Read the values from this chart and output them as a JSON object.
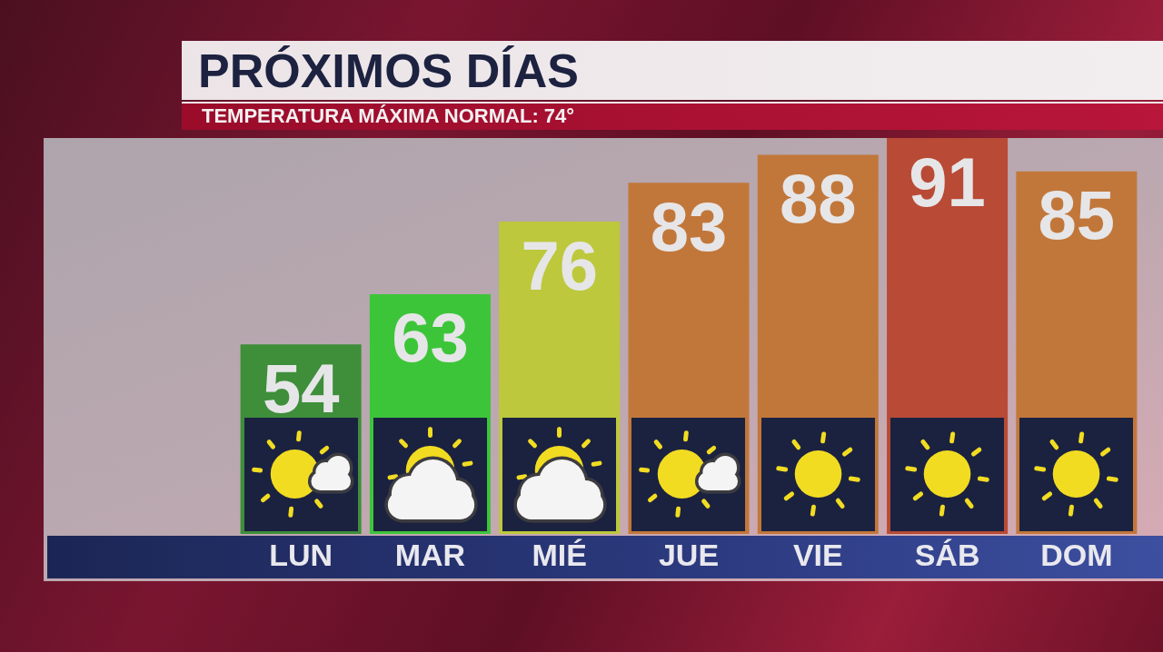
{
  "chart_data": {
    "type": "bar",
    "title": "PRÓXIMOS DÍAS",
    "subtitle": "TEMPERATURA MÁXIMA NORMAL: 74°",
    "categories": [
      "LUN",
      "MAR",
      "MIÉ",
      "JUE",
      "VIE",
      "SÁB",
      "DOM"
    ],
    "values": [
      54,
      63,
      76,
      83,
      88,
      91,
      85
    ],
    "colors": [
      "#3e8e3a",
      "#3dc53a",
      "#bdc83c",
      "#c2773a",
      "#c2773a",
      "#b94a35",
      "#c2773a"
    ],
    "ylim": [
      20,
      91
    ],
    "data_labels": true,
    "tick_labels": "x"
  }
}
